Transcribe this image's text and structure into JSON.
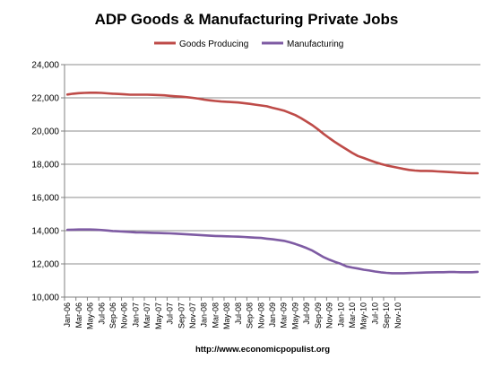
{
  "chart_data": {
    "type": "line",
    "title": "ADP Goods & Manufacturing Private Jobs",
    "source": "http://www.economicpopulist.org",
    "xlabel": "",
    "ylabel": "",
    "ylim": [
      10000,
      24000
    ],
    "yticks": [
      10000,
      12000,
      14000,
      16000,
      18000,
      20000,
      22000,
      24000
    ],
    "ytick_labels": [
      "10,000",
      "12,000",
      "14,000",
      "16,000",
      "18,000",
      "20,000",
      "22,000",
      "24,000"
    ],
    "grid": true,
    "legend_position": "top",
    "x_tick_labels": [
      "Jan-06",
      "Mar-06",
      "May-06",
      "Jul-06",
      "Sep-06",
      "Nov-06",
      "Jan-07",
      "Mar-07",
      "May-07",
      "Jul-07",
      "Sep-07",
      "Nov-07",
      "Jan-08",
      "Mar-08",
      "May-08",
      "Jul-08",
      "Sep-08",
      "Nov-08",
      "Jan-09",
      "Mar-09",
      "May-09",
      "Jul-09",
      "Sep-09",
      "Nov-09",
      "Jan-10",
      "Mar-10",
      "May-10",
      "Jul-10",
      "Sep-10",
      "Nov-10"
    ],
    "series": [
      {
        "name": "Goods Producing",
        "color": "#BE4B48",
        "values": [
          22200,
          22250,
          22280,
          22300,
          22310,
          22310,
          22300,
          22270,
          22250,
          22230,
          22210,
          22190,
          22190,
          22190,
          22190,
          22180,
          22170,
          22150,
          22120,
          22090,
          22070,
          22040,
          22000,
          21950,
          21890,
          21850,
          21810,
          21780,
          21760,
          21740,
          21720,
          21680,
          21640,
          21590,
          21540,
          21490,
          21400,
          21320,
          21230,
          21100,
          20960,
          20780,
          20570,
          20350,
          20100,
          19820,
          19570,
          19330,
          19110,
          18900,
          18680,
          18500,
          18380,
          18250,
          18130,
          18020,
          17930,
          17860,
          17790,
          17720,
          17660,
          17620,
          17600,
          17600,
          17590,
          17570,
          17550,
          17530,
          17510,
          17490,
          17470,
          17460,
          17460
        ]
      },
      {
        "name": "Manufacturing",
        "color": "#7E5BA3",
        "values": [
          14050,
          14060,
          14070,
          14070,
          14070,
          14060,
          14040,
          14010,
          13980,
          13960,
          13940,
          13920,
          13900,
          13890,
          13880,
          13870,
          13860,
          13850,
          13840,
          13820,
          13800,
          13780,
          13760,
          13740,
          13720,
          13700,
          13680,
          13670,
          13660,
          13650,
          13640,
          13620,
          13600,
          13580,
          13560,
          13520,
          13480,
          13440,
          13390,
          13300,
          13200,
          13080,
          12950,
          12800,
          12600,
          12400,
          12250,
          12120,
          12000,
          11850,
          11780,
          11720,
          11650,
          11600,
          11540,
          11490,
          11460,
          11440,
          11440,
          11440,
          11450,
          11460,
          11470,
          11480,
          11490,
          11500,
          11500,
          11510,
          11510,
          11500,
          11500,
          11500,
          11520
        ]
      }
    ]
  }
}
